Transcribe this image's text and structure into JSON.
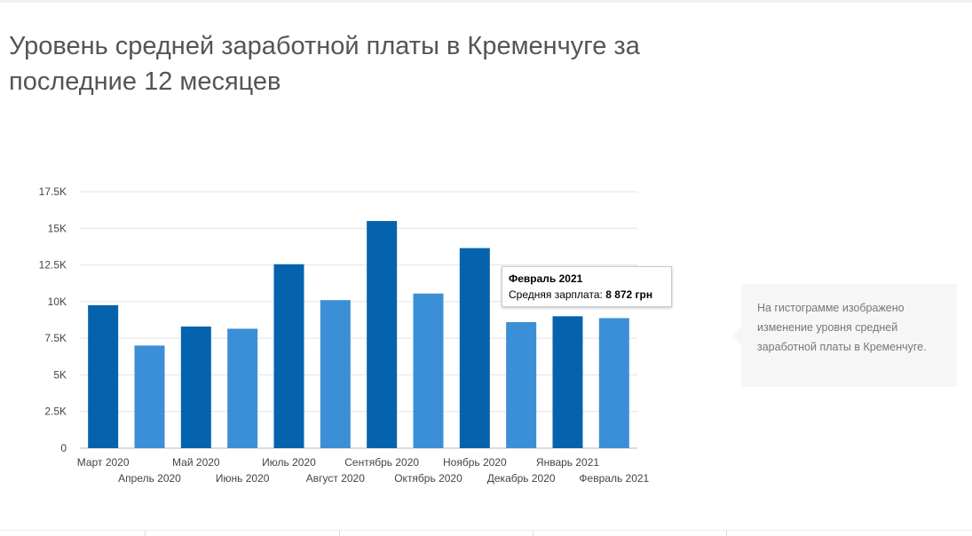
{
  "page": {
    "title": "Уровень средней заработной платы в Кременчуге за последние 12 месяцев"
  },
  "tooltip": {
    "title": "Февраль 2021",
    "label": "Средняя зарплата:",
    "value": "8 872 грн"
  },
  "note": {
    "text": "На гистограмме изображено изменение уровня средней заработной платы в Кременчуге."
  },
  "colors": {
    "dark_bar": "#0563ad",
    "light_bar": "#3a8fd6",
    "grid": "#e3e3e3",
    "axis_text": "#444444"
  },
  "chart_data": {
    "type": "bar",
    "title": "",
    "xlabel": "",
    "ylabel": "",
    "categories": [
      "Март 2020",
      "Апрель 2020",
      "Май 2020",
      "Июнь 2020",
      "Июль 2020",
      "Август 2020",
      "Сентябрь 2020",
      "Октябрь 2020",
      "Ноябрь 2020",
      "Декабрь 2020",
      "Январь 2021",
      "Февраль 2021"
    ],
    "values": [
      9750,
      7000,
      8300,
      8150,
      12550,
      10100,
      15500,
      10550,
      13650,
      8600,
      9000,
      8872
    ],
    "ylim": [
      0,
      17500
    ],
    "yticks": [
      0,
      2500,
      5000,
      7500,
      10000,
      12500,
      15000,
      17500
    ],
    "ytick_labels": [
      "0",
      "2.5K",
      "5K",
      "7.5K",
      "10K",
      "12.5K",
      "15K",
      "17.5K"
    ],
    "grid": true,
    "legend": false,
    "colors": [
      "#0563ad",
      "#3a8fd6",
      "#0563ad",
      "#3a8fd6",
      "#0563ad",
      "#3a8fd6",
      "#0563ad",
      "#3a8fd6",
      "#0563ad",
      "#3a8fd6",
      "#0563ad",
      "#3a8fd6"
    ]
  }
}
